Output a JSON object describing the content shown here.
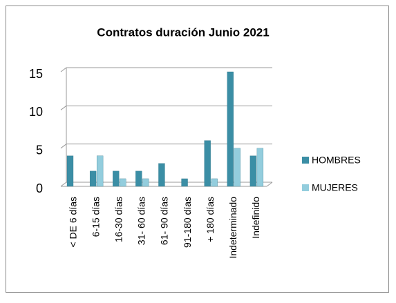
{
  "chart_data": {
    "type": "bar",
    "title": "Contratos duración Junio 2021",
    "categories": [
      "< DE 6 días",
      "6-15 días",
      "16-30 días",
      "31- 60 días",
      "61- 90 días",
      "91-180 días",
      "+ 180 días",
      "Indeterminado",
      "Indefinido"
    ],
    "series": [
      {
        "name": "HOMBRES",
        "color": "#3b8ea5",
        "values": [
          4,
          2,
          2,
          2,
          3,
          1,
          6,
          15,
          4
        ]
      },
      {
        "name": "MUJERES",
        "color": "#93cddd",
        "values": [
          0,
          4,
          1,
          1,
          0,
          0,
          1,
          5,
          5
        ]
      }
    ],
    "ylim": [
      0,
      15
    ],
    "yticks": [
      0,
      5,
      10,
      15
    ],
    "grid": true,
    "legend": "right"
  }
}
